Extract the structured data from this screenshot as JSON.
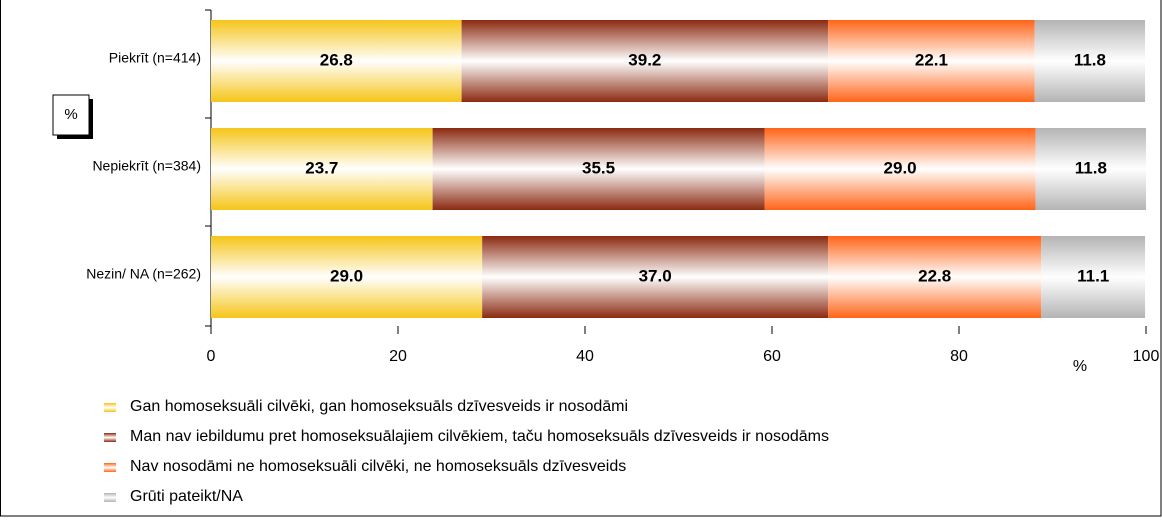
{
  "chart_data": {
    "type": "stacked-bar-horizontal",
    "categories": [
      "Piekrīt (n=414)",
      "Nepiekrīt (n=384)",
      "Nezin/ NA (n=262)"
    ],
    "series": [
      {
        "name": "Gan homoseksuāli cilvēki, gan homoseksuāls dzīvesveids ir nosodāmi",
        "color": "#f5c518",
        "values": [
          26.8,
          23.7,
          29
        ],
        "value_labels": [
          "26.8",
          "23.7",
          "29.0"
        ]
      },
      {
        "name": "Man nav iebildumu pret homoseksuālajiem cilvēkiem, taču homoseksuāls dzīvesveids ir nosodāms",
        "color": "#8b2a10",
        "values": [
          39.2,
          35.5,
          37
        ],
        "value_labels": [
          "39.2",
          "35.5",
          "37.0"
        ]
      },
      {
        "name": "Nav nosodāmi ne homoseksuāli cilvēki, ne homoseksuāls dzīvesveids",
        "color": "#ff6418",
        "values": [
          22.1,
          29,
          22.8
        ],
        "value_labels": [
          "22.1",
          "29.0",
          "22.8"
        ]
      },
      {
        "name": "Grūti pateikt/NA",
        "color": "#b4b4b4",
        "values": [
          11.8,
          11.8,
          11.1
        ],
        "value_labels": [
          "11.8",
          "11.8",
          "11.1"
        ]
      }
    ],
    "xlim": [
      0,
      100
    ],
    "xticks": [
      0,
      20,
      40,
      60,
      80,
      100
    ],
    "xlabel": "%",
    "unit_box": "%",
    "legend": "bottom"
  }
}
